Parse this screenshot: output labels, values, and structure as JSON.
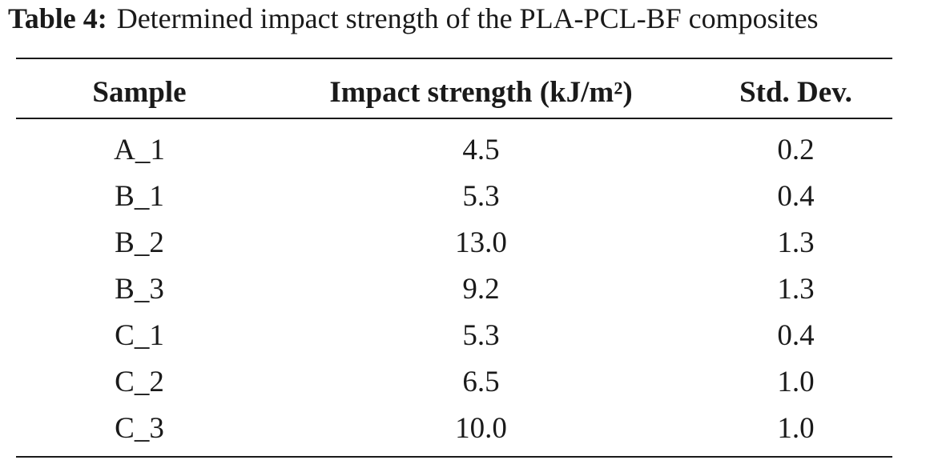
{
  "caption": {
    "label": "Table 4:",
    "text": "Determined impact strength of the PLA-PCL-BF composites"
  },
  "table": {
    "headers": [
      "Sample",
      "Impact strength (kJ/m²)",
      "Std. Dev."
    ],
    "rows": [
      [
        "A_1",
        "4.5",
        "0.2"
      ],
      [
        "B_1",
        "5.3",
        "0.4"
      ],
      [
        "B_2",
        "13.0",
        "1.3"
      ],
      [
        "B_3",
        "9.2",
        "1.3"
      ],
      [
        "C_1",
        "5.3",
        "0.4"
      ],
      [
        "C_2",
        "6.5",
        "1.0"
      ],
      [
        "C_3",
        "10.0",
        "1.0"
      ]
    ]
  }
}
